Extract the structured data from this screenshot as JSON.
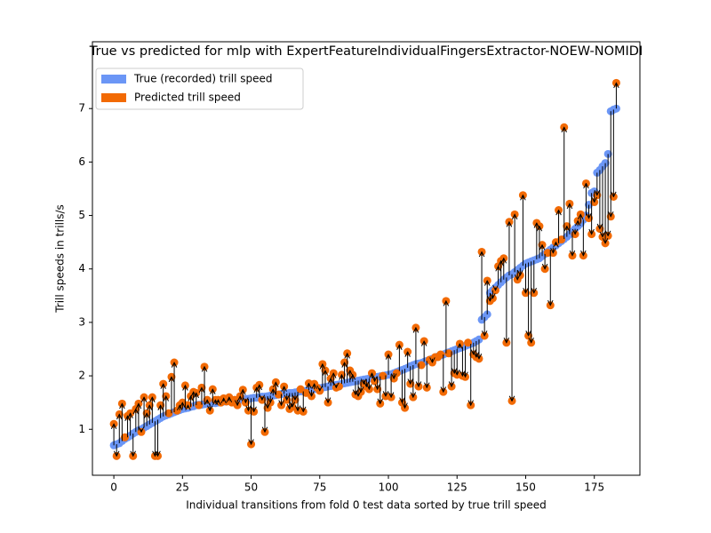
{
  "chart_data": {
    "type": "scatter",
    "title": "True vs predicted for mlp with ExpertFeatureIndividualFingersExtractor-NOEW-NOMIDI",
    "x_label": "Individual transitions from fold 0 test data sorted by true trill speed",
    "y_label": "Trill speeds in trills/s",
    "xlim": [
      -7.8,
      191.6
    ],
    "ylim": [
      0.14,
      8.25
    ],
    "xticks": [
      0,
      25,
      50,
      75,
      100,
      125,
      150,
      175
    ],
    "yticks": [
      1,
      2,
      3,
      4,
      5,
      6,
      7
    ],
    "legend": "upper left",
    "arrows": true,
    "x": [
      0,
      1,
      2,
      3,
      4,
      5,
      6,
      7,
      8,
      9,
      10,
      11,
      12,
      13,
      14,
      15,
      16,
      17,
      18,
      19,
      20,
      21,
      22,
      23,
      24,
      25,
      26,
      27,
      28,
      29,
      30,
      31,
      32,
      33,
      34,
      35,
      36,
      37,
      38,
      39,
      40,
      41,
      42,
      43,
      44,
      45,
      46,
      47,
      48,
      49,
      50,
      51,
      52,
      53,
      54,
      55,
      56,
      57,
      58,
      59,
      60,
      61,
      62,
      63,
      64,
      65,
      66,
      67,
      68,
      69,
      70,
      71,
      72,
      73,
      74,
      75,
      76,
      77,
      78,
      79,
      80,
      81,
      82,
      83,
      84,
      85,
      86,
      87,
      88,
      89,
      90,
      91,
      92,
      93,
      94,
      95,
      96,
      97,
      98,
      99,
      100,
      101,
      102,
      103,
      104,
      105,
      106,
      107,
      108,
      109,
      110,
      111,
      112,
      113,
      114,
      115,
      116,
      117,
      118,
      119,
      120,
      121,
      122,
      123,
      124,
      125,
      126,
      127,
      128,
      129,
      130,
      131,
      132,
      133,
      134,
      135,
      136,
      137,
      138,
      139,
      140,
      141,
      142,
      143,
      144,
      145,
      146,
      147,
      148,
      149,
      150,
      151,
      152,
      153,
      154,
      155,
      156,
      157,
      158,
      159,
      160,
      161,
      162,
      163,
      164,
      165,
      166,
      167,
      168,
      169,
      170,
      171,
      172,
      173,
      174,
      175,
      176,
      177,
      178,
      179,
      180,
      181,
      182,
      183
    ],
    "series": [
      {
        "name": "True (recorded) trill speed",
        "color": "#6b96f6",
        "values": [
          0.7,
          0.72,
          0.74,
          0.78,
          0.82,
          0.85,
          0.88,
          0.92,
          0.95,
          0.98,
          1.0,
          1.03,
          1.06,
          1.09,
          1.12,
          1.15,
          1.18,
          1.21,
          1.24,
          1.26,
          1.28,
          1.3,
          1.32,
          1.34,
          1.36,
          1.38,
          1.39,
          1.4,
          1.42,
          1.43,
          1.45,
          1.46,
          1.46,
          1.47,
          1.48,
          1.48,
          1.49,
          1.49,
          1.5,
          1.5,
          1.52,
          1.52,
          1.53,
          1.53,
          1.54,
          1.55,
          1.55,
          1.56,
          1.57,
          1.57,
          1.58,
          1.59,
          1.59,
          1.6,
          1.61,
          1.61,
          1.62,
          1.63,
          1.63,
          1.64,
          1.65,
          1.66,
          1.66,
          1.67,
          1.68,
          1.68,
          1.69,
          1.7,
          1.71,
          1.71,
          1.72,
          1.73,
          1.74,
          1.75,
          1.76,
          1.77,
          1.78,
          1.79,
          1.8,
          1.81,
          1.82,
          1.83,
          1.84,
          1.85,
          1.86,
          1.87,
          1.88,
          1.89,
          1.9,
          1.91,
          1.92,
          1.93,
          1.94,
          1.95,
          1.96,
          1.97,
          1.98,
          1.99,
          2.0,
          2.01,
          2.02,
          2.03,
          2.05,
          2.07,
          2.09,
          2.11,
          2.13,
          2.15,
          2.18,
          2.2,
          2.22,
          2.23,
          2.24,
          2.26,
          2.28,
          2.3,
          2.32,
          2.34,
          2.36,
          2.38,
          2.4,
          2.42,
          2.44,
          2.46,
          2.48,
          2.5,
          2.52,
          2.54,
          2.56,
          2.58,
          2.6,
          2.62,
          2.65,
          2.68,
          3.05,
          3.1,
          3.15,
          3.55,
          3.6,
          3.65,
          3.7,
          3.75,
          3.8,
          3.84,
          3.88,
          3.9,
          3.94,
          3.98,
          4.02,
          4.06,
          4.1,
          4.12,
          4.14,
          4.16,
          4.18,
          4.2,
          4.24,
          4.28,
          4.32,
          4.36,
          4.4,
          4.44,
          4.48,
          4.52,
          4.56,
          4.6,
          4.65,
          4.7,
          4.75,
          4.8,
          4.85,
          4.92,
          5.0,
          5.2,
          5.42,
          5.45,
          5.8,
          5.85,
          5.92,
          5.98,
          6.15,
          6.95,
          6.98,
          7.0
        ]
      },
      {
        "name": "Predicted trill speed",
        "color": "#f26a04",
        "values": [
          1.1,
          0.5,
          1.28,
          1.48,
          0.85,
          1.25,
          1.3,
          0.5,
          1.38,
          1.48,
          0.95,
          1.6,
          1.3,
          1.45,
          1.6,
          0.5,
          0.5,
          1.45,
          1.85,
          1.62,
          1.3,
          1.98,
          2.25,
          1.35,
          1.45,
          1.5,
          1.82,
          1.45,
          1.62,
          1.7,
          1.68,
          1.45,
          1.78,
          2.17,
          1.55,
          1.35,
          1.75,
          1.55,
          1.55,
          1.5,
          1.58,
          1.52,
          1.6,
          1.5,
          1.55,
          1.45,
          1.62,
          1.74,
          1.5,
          1.35,
          0.72,
          1.33,
          1.78,
          1.83,
          1.55,
          0.95,
          1.4,
          1.5,
          1.75,
          1.88,
          1.65,
          1.45,
          1.8,
          1.55,
          1.38,
          1.42,
          1.55,
          1.35,
          1.75,
          1.33,
          1.68,
          1.86,
          1.62,
          1.85,
          1.78,
          1.72,
          2.22,
          2.1,
          1.5,
          1.95,
          2.05,
          1.78,
          1.8,
          2.02,
          2.25,
          2.42,
          2.1,
          2.02,
          1.65,
          1.62,
          1.7,
          1.85,
          1.8,
          1.75,
          2.05,
          1.9,
          1.75,
          1.48,
          2.0,
          1.62,
          2.4,
          1.6,
          1.95,
          2.05,
          2.58,
          1.5,
          1.4,
          2.45,
          1.85,
          1.6,
          2.9,
          1.8,
          2.2,
          2.65,
          1.78,
          2.3,
          2.25,
          2.35,
          2.35,
          2.4,
          1.7,
          3.4,
          2.42,
          1.8,
          2.05,
          2.02,
          2.6,
          2.0,
          1.98,
          2.62,
          1.45,
          2.4,
          2.35,
          2.32,
          4.32,
          2.75,
          3.78,
          3.4,
          3.45,
          3.6,
          4.05,
          4.15,
          4.2,
          2.62,
          4.88,
          1.53,
          5.02,
          3.8,
          3.88,
          5.38,
          3.55,
          2.75,
          2.62,
          3.55,
          4.86,
          4.8,
          4.45,
          4.0,
          4.3,
          3.32,
          4.3,
          4.5,
          5.1,
          4.55,
          6.65,
          4.8,
          5.22,
          4.25,
          4.65,
          4.9,
          5.02,
          4.25,
          5.6,
          4.95,
          4.65,
          5.25,
          5.38,
          4.75,
          4.6,
          4.48,
          4.62,
          4.98,
          5.35,
          7.48
        ]
      }
    ]
  }
}
